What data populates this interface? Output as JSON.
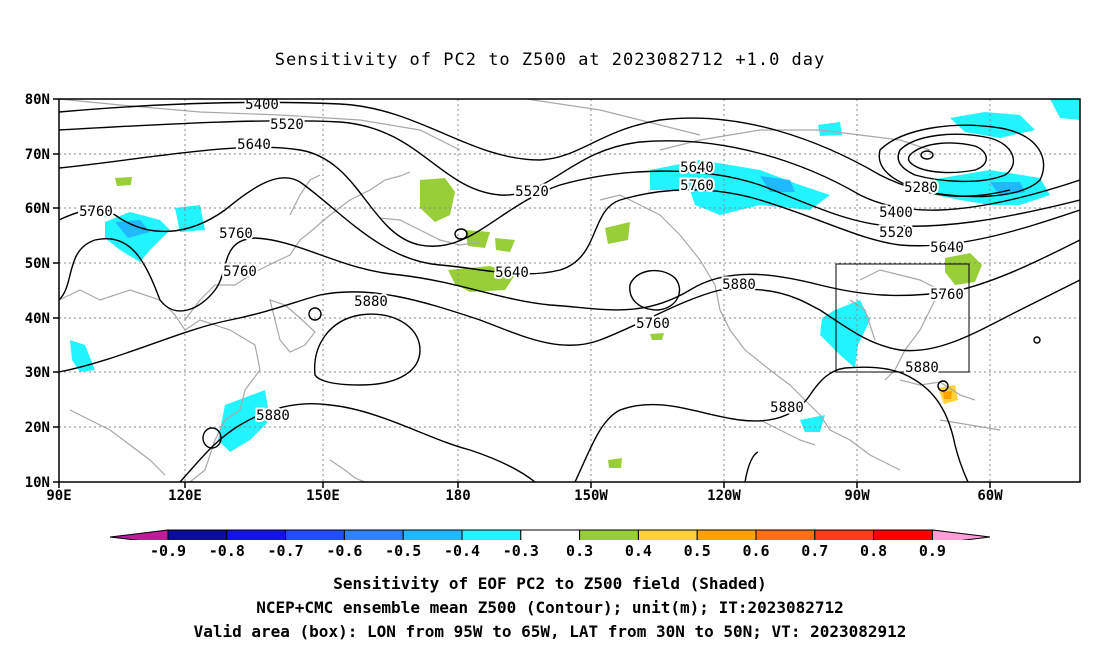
{
  "title": "Sensitivity of PC2 to Z500 at 2023082712 +1.0 day",
  "lat_labels": [
    "80N",
    "70N",
    "60N",
    "50N",
    "40N",
    "30N",
    "20N",
    "10N"
  ],
  "lon_labels": [
    "90E",
    "120E",
    "150E",
    "180",
    "150W",
    "120W",
    "90W",
    "60W"
  ],
  "contour_labels": [
    "5400",
    "5520",
    "5640",
    "5760",
    "5760",
    "5760",
    "5520",
    "5640",
    "5760",
    "5640",
    "5760",
    "5880",
    "5880",
    "5760",
    "5880",
    "5280",
    "5400",
    "5520",
    "5640",
    "5760",
    "5880",
    "5880"
  ],
  "colorbar": {
    "labels": [
      "-0.9",
      "-0.8",
      "-0.7",
      "-0.6",
      "-0.5",
      "-0.4",
      "-0.3",
      "0.3",
      "0.4",
      "0.5",
      "0.6",
      "0.7",
      "0.8",
      "0.9"
    ],
    "colors": [
      "#0b0b9e",
      "#1414e6",
      "#1f4dff",
      "#2f82ff",
      "#20b8ff",
      "#22f4ff",
      "#ffffff",
      "#98cf39",
      "#ffd23a",
      "#ffa100",
      "#ff6f14",
      "#ff3b1b",
      "#ff0000"
    ],
    "low_color": "#c01a9a",
    "high_color": "#ff9ed6"
  },
  "captions": {
    "line1": "Sensitivity of EOF PC2 to Z500 field (Shaded)",
    "line2": "NCEP+CMC ensemble mean Z500 (Contour); unit(m); IT:2023082712",
    "line3": "Valid area (box): LON from 95W to 65W, LAT from 30N to 50N; VT: 2023082912"
  }
}
